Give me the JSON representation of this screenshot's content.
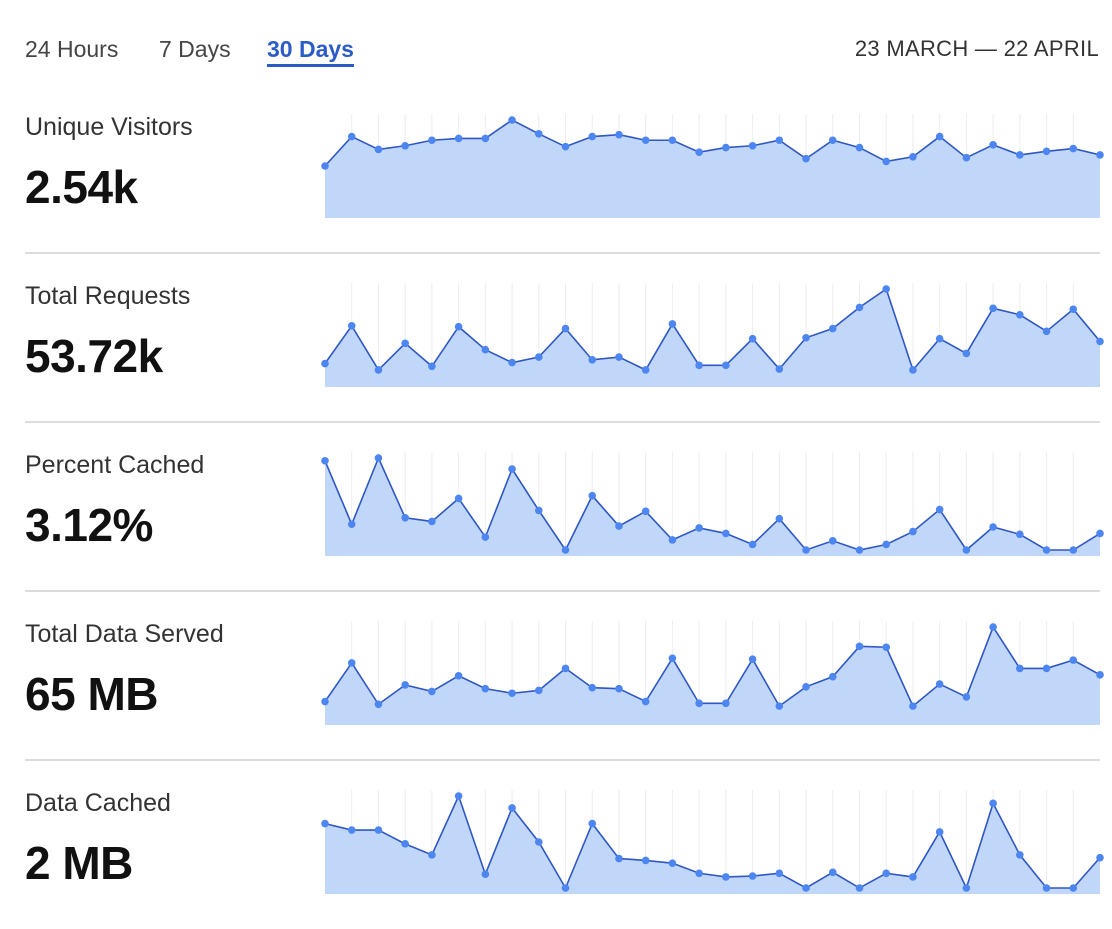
{
  "tabs": [
    {
      "label": "24 Hours",
      "active": false
    },
    {
      "label": "7 Days",
      "active": false
    },
    {
      "label": "30 Days",
      "active": true
    }
  ],
  "date_range": "23 MARCH — 22 APRIL",
  "colors": {
    "accent": "#2b5cc6",
    "line": "#2e57c2",
    "point": "#4d86f0",
    "fill": "#c1d7fa",
    "grid": "#ececf2"
  },
  "metrics": [
    {
      "label": "Unique Visitors",
      "value": "2.54k",
      "series": [
        50,
        82,
        68,
        72,
        78,
        80,
        80,
        100,
        85,
        71,
        82,
        84,
        78,
        78,
        65,
        70,
        72,
        78,
        58,
        78,
        70,
        55,
        60,
        82,
        59,
        73,
        62,
        66,
        69,
        62
      ]
    },
    {
      "label": "Total Requests",
      "value": "53.72k",
      "series": [
        19,
        60,
        12,
        41,
        16,
        59,
        34,
        20,
        26,
        57,
        23,
        26,
        12,
        62,
        17,
        17,
        46,
        13,
        47,
        57,
        80,
        100,
        12,
        46,
        30,
        79,
        72,
        54,
        78,
        43
      ]
    },
    {
      "label": "Percent Cached",
      "value": "3.12%",
      "series": [
        97,
        28,
        100,
        35,
        31,
        56,
        14,
        88,
        43,
        0,
        59,
        26,
        42,
        11,
        24,
        18,
        6,
        34,
        0,
        10,
        0,
        6,
        20,
        44,
        0,
        25,
        17,
        0,
        0,
        18
      ]
    },
    {
      "label": "Total Data Served",
      "value": "65 MB",
      "series": [
        19,
        61,
        16,
        37,
        30,
        47,
        33,
        28,
        31,
        55,
        34,
        33,
        19,
        66,
        17,
        17,
        65,
        14,
        35,
        46,
        79,
        78,
        14,
        38,
        24,
        100,
        55,
        55,
        64,
        48
      ]
    },
    {
      "label": "Data Cached",
      "value": "2 MB",
      "series": [
        70,
        63,
        63,
        48,
        36,
        100,
        15,
        87,
        50,
        0,
        70,
        32,
        30,
        27,
        16,
        12,
        13,
        16,
        0,
        17,
        0,
        16,
        12,
        61,
        0,
        92,
        36,
        0,
        0,
        33
      ]
    }
  ]
}
